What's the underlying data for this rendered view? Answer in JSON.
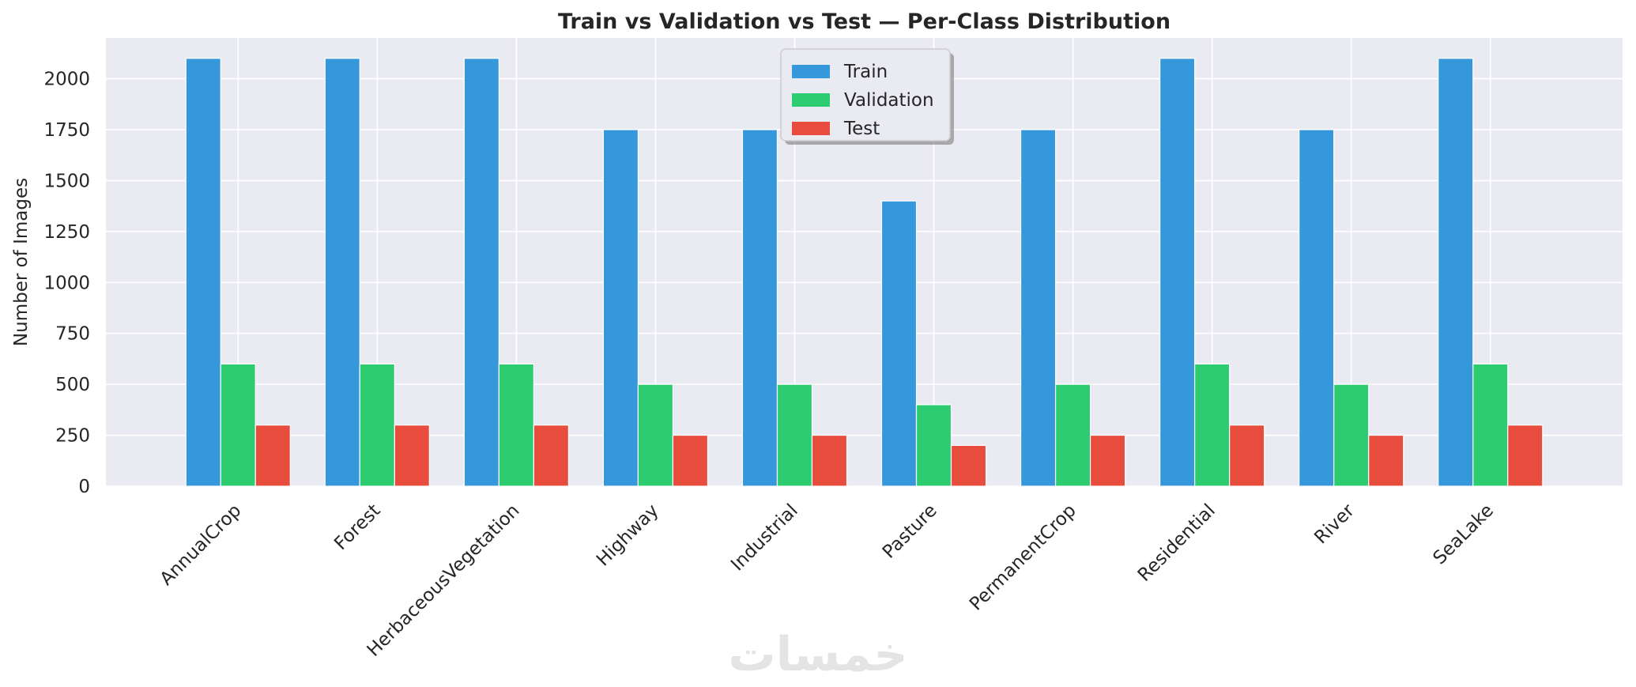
{
  "chart_data": {
    "type": "bar",
    "title": "Train vs Validation vs Test — Per-Class Distribution",
    "xlabel": "",
    "ylabel": "Number of Images",
    "ylim": [
      0,
      2200
    ],
    "yticks": [
      0,
      250,
      500,
      750,
      1000,
      1250,
      1500,
      1750,
      2000
    ],
    "grid": true,
    "legend_position": "top-center",
    "categories": [
      "AnnualCrop",
      "Forest",
      "HerbaceousVegetation",
      "Highway",
      "Industrial",
      "Pasture",
      "PermanentCrop",
      "Residential",
      "River",
      "SeaLake"
    ],
    "series": [
      {
        "name": "Train",
        "color": "#3498db",
        "values": [
          2100,
          2100,
          2100,
          1750,
          1750,
          1400,
          1750,
          2100,
          1750,
          2100
        ]
      },
      {
        "name": "Validation",
        "color": "#2ecc71",
        "values": [
          600,
          600,
          600,
          500,
          500,
          400,
          500,
          600,
          500,
          600
        ]
      },
      {
        "name": "Test",
        "color": "#e74c3c",
        "values": [
          300,
          300,
          300,
          250,
          250,
          200,
          250,
          300,
          250,
          300
        ]
      }
    ]
  },
  "watermark": "خمسات"
}
